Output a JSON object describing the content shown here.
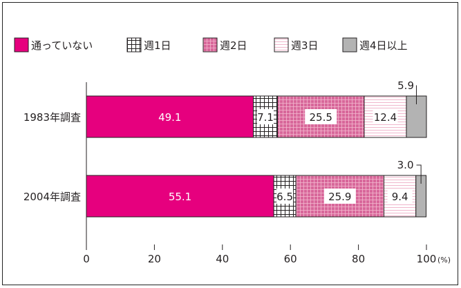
{
  "chart_data": {
    "type": "bar",
    "orientation": "horizontal",
    "stacked": true,
    "categories": [
      "1983年調査",
      "2004年調査"
    ],
    "series": [
      {
        "name": "通っていない",
        "values": [
          49.1,
          55.1
        ],
        "pattern": "solid",
        "color": "#e6007e"
      },
      {
        "name": "週1日",
        "values": [
          7.1,
          6.5
        ],
        "pattern": "grid",
        "color": "#231f20"
      },
      {
        "name": "週2日",
        "values": [
          25.5,
          25.9
        ],
        "pattern": "pink-grid",
        "color": "#d8679a"
      },
      {
        "name": "週3日",
        "values": [
          12.4,
          9.4
        ],
        "pattern": "pink-lines",
        "color": "#f0b6cc"
      },
      {
        "name": "週4日以上",
        "values": [
          5.9,
          3.0
        ],
        "pattern": "solid",
        "color": "#b3b3b3"
      }
    ],
    "value_labels": [
      [
        "49.1",
        "7.1",
        "25.5",
        "12.4",
        "5.9"
      ],
      [
        "55.1",
        "6.5",
        "25.9",
        "9.4",
        "3.0"
      ]
    ],
    "xlim": [
      0,
      100
    ],
    "xticks": [
      "0",
      "20",
      "40",
      "60",
      "80",
      "100"
    ],
    "x_unit": "(%)",
    "legend_position": "top",
    "grid": false
  }
}
